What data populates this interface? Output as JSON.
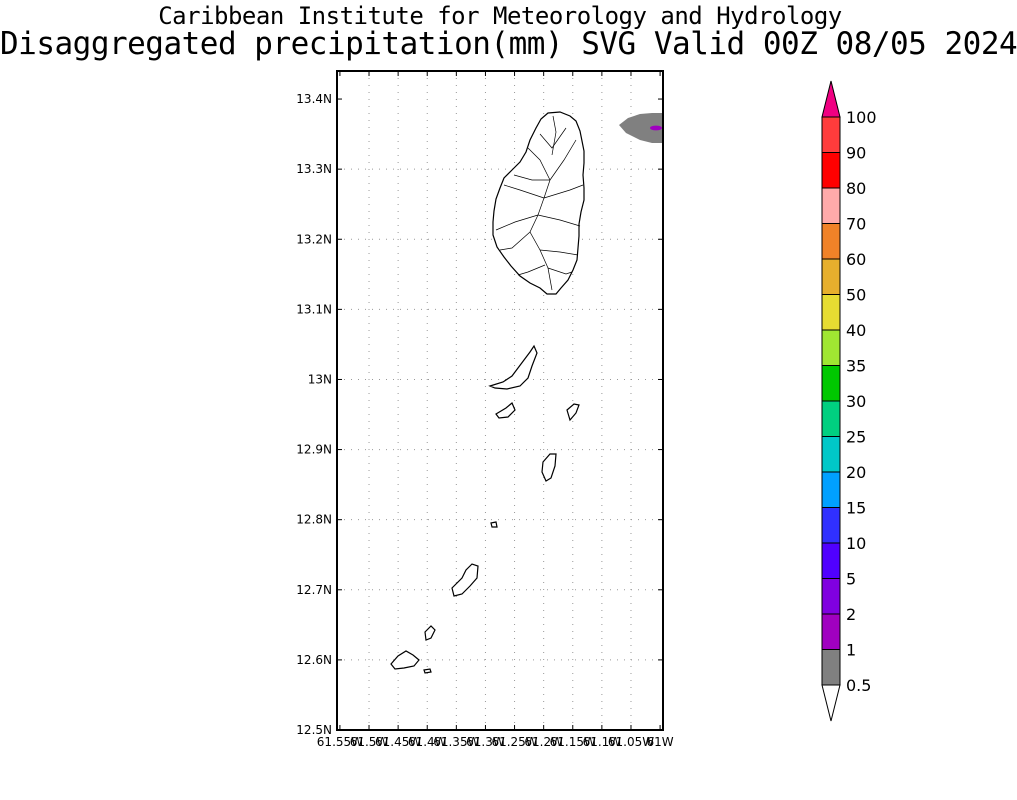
{
  "title": {
    "line1": "Caribbean Institute for Meteorology and Hydrology",
    "line2": "Disaggregated precipitation(mm) SVG Valid 00Z 08/05 2024"
  },
  "map": {
    "lat_labels": [
      "13.4N",
      "13.3N",
      "13.2N",
      "13.1N",
      "13N",
      "12.9N",
      "12.8N",
      "12.7N",
      "12.6N",
      "12.5N"
    ],
    "lat_values": [
      13.4,
      13.3,
      13.2,
      13.1,
      13.0,
      12.9,
      12.8,
      12.7,
      12.6,
      12.5
    ],
    "lon_labels": [
      "61.55W",
      "61.5W",
      "61.45W",
      "61.4W",
      "61.35W",
      "61.3W",
      "61.25W",
      "61.2W",
      "61.15W",
      "61.1W",
      "61.05W",
      "61W"
    ],
    "lon_values": [
      -61.55,
      -61.5,
      -61.45,
      -61.4,
      -61.35,
      -61.3,
      -61.25,
      -61.2,
      -61.15,
      -61.1,
      -61.05,
      -61.0
    ],
    "lat_range": [
      12.5,
      13.44
    ],
    "lon_range": [
      -61.555,
      -60.995
    ],
    "grid": true
  },
  "colorbar": {
    "labels": [
      "0.5",
      "1",
      "2",
      "5",
      "10",
      "15",
      "20",
      "25",
      "30",
      "35",
      "40",
      "50",
      "60",
      "70",
      "80",
      "90",
      "100"
    ],
    "colors": [
      "#808080",
      "#a000c0",
      "#8000e0",
      "#5000ff",
      "#3030ff",
      "#00a0ff",
      "#00c8c8",
      "#00d080",
      "#00c800",
      "#a0e632",
      "#e6dc32",
      "#e6af2d",
      "#f08228",
      "#ffaaaa",
      "#ff0000",
      "#ff3c3c",
      "#f00082"
    ],
    "units": "mm"
  }
}
